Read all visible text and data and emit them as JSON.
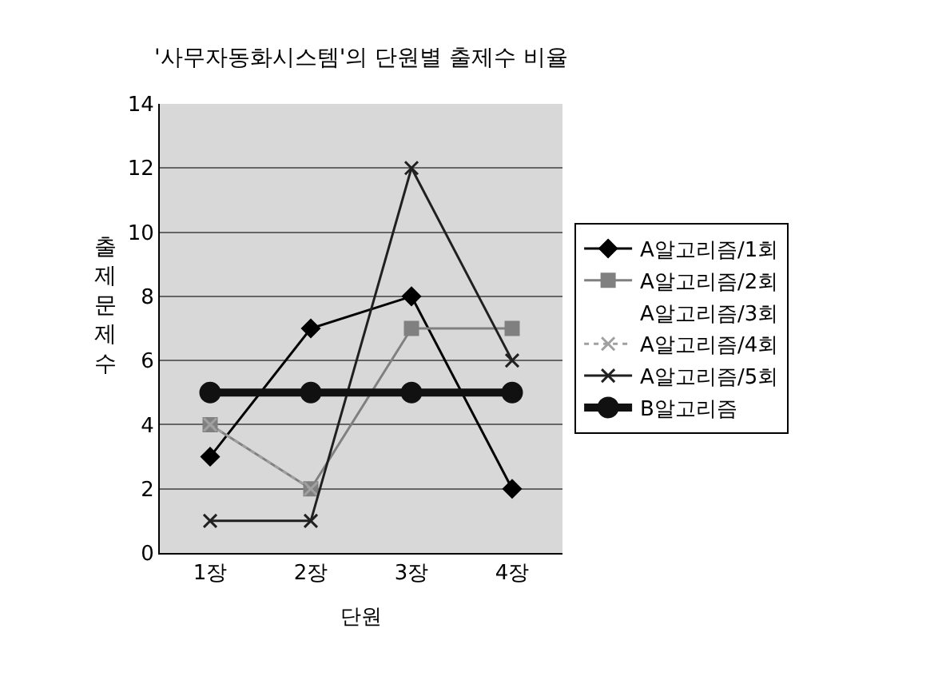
{
  "chart_data": {
    "type": "line",
    "title": "'사무자동화시스템'의 단원별 출제수 비율",
    "xlabel": "단원",
    "ylabel": "출제문제수",
    "categories": [
      "1장",
      "2장",
      "3장",
      "4장"
    ],
    "series": [
      {
        "name": "A알고리즘/1회",
        "color": "#000000",
        "values": [
          3,
          7,
          8,
          2
        ],
        "marker": "diamond",
        "line_style": "solid"
      },
      {
        "name": "A알고리즘/2회",
        "color": "#808080",
        "values": [
          4,
          2,
          7,
          7
        ],
        "marker": "square",
        "line_style": "solid"
      },
      {
        "name": "A알고리즘/3회",
        "values": [
          null,
          null,
          null,
          null
        ],
        "marker": "none",
        "line_style": "solid"
      },
      {
        "name": "A알고리즘/4회",
        "color": "#a0a0a0",
        "values": [
          4,
          2,
          null,
          null
        ],
        "marker": "cross",
        "line_style": "dotted"
      },
      {
        "name": "A알고리즘/5회",
        "color": "#202020",
        "values": [
          1,
          1,
          12,
          6
        ],
        "marker": "cross",
        "line_style": "solid"
      },
      {
        "name": "B알고리즘",
        "color": "#111111",
        "values": [
          5,
          5,
          5,
          5
        ],
        "marker": "circle",
        "line_style": "solid"
      }
    ],
    "ylim": [
      0,
      14
    ],
    "yticks": [
      0,
      2,
      4,
      6,
      8,
      10,
      12,
      14
    ],
    "grid": "y",
    "legend": "right"
  }
}
